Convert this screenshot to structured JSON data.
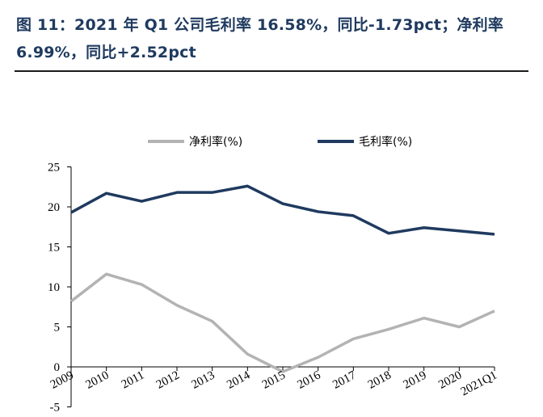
{
  "title": "图 11：2021 年 Q1 公司毛利率 16.58%，同比-1.73pct；净利率 6.99%，同比+2.52pct",
  "colors": {
    "title": "#1f3a5f",
    "net": "#b3b3b3",
    "gross": "#1f3a5f"
  },
  "chart_data": {
    "type": "line",
    "categories": [
      "2009",
      "2010",
      "2011",
      "2012",
      "2013",
      "2014",
      "2015",
      "2016",
      "2017",
      "2018",
      "2019",
      "2020",
      "2021Q1"
    ],
    "series": [
      {
        "name": "净利率(%)",
        "color": "#b3b3b3",
        "values": [
          8.2,
          11.6,
          10.3,
          7.7,
          5.7,
          1.6,
          -0.6,
          1.2,
          3.5,
          4.7,
          6.1,
          5.0,
          6.99
        ]
      },
      {
        "name": "毛利率(%)",
        "color": "#1f3a5f",
        "values": [
          19.3,
          21.7,
          20.7,
          21.8,
          21.8,
          22.6,
          20.4,
          19.4,
          18.9,
          16.7,
          17.4,
          17.0,
          16.58
        ]
      }
    ],
    "yticks": [
      "25",
      "20",
      "15",
      "10",
      "5",
      "0",
      "-5"
    ],
    "ylim": [
      -5,
      25
    ],
    "legend_position": "top"
  }
}
